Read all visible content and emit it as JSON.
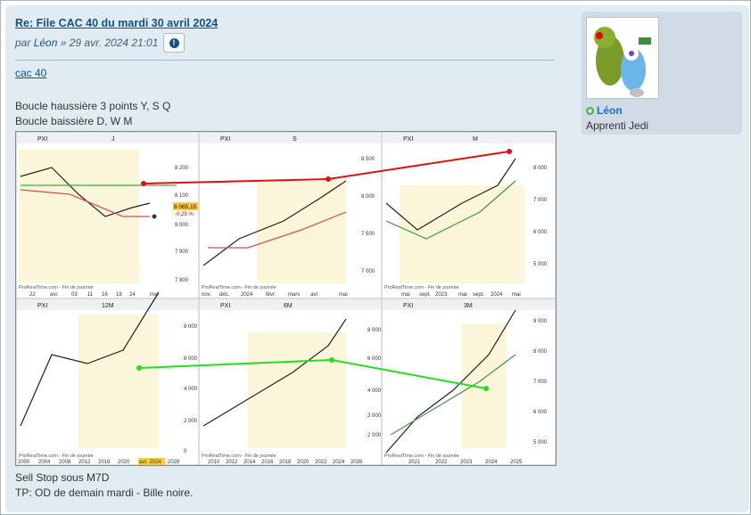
{
  "post": {
    "title": "Re: File CAC 40 du mardi 30 avril 2024",
    "by": "par",
    "author": "Léon",
    "date": "» 29 avr. 2024 21:01",
    "link_text": "cac 40",
    "lines": [
      "Boucle haussière 3 points Y, S Q",
      "Boucle baissière D, W M",
      "Sell Stop sous M7D",
      "TP: OD de demain mardi - Bille noire."
    ]
  },
  "profile": {
    "username": "Léon",
    "rank": "Apprenti Jedi"
  },
  "chart_image": {
    "source": "ProRealTime.com - Fin de journée",
    "symbol": "PXI",
    "top_timeframes": [
      "J",
      "S",
      "M"
    ],
    "bottom_timeframes": [
      "12M",
      "6M",
      "3M"
    ],
    "price_tag": "8 065,15",
    "price_change": "-0,29 %",
    "panels": [
      {
        "name": "daily",
        "y_ticks": [
          "8 200",
          "8 100",
          "8 000",
          "7 900",
          "7 800"
        ],
        "x_ticks": [
          "22",
          "avr.",
          "03",
          "11",
          "16",
          "18",
          "24",
          "mai"
        ]
      },
      {
        "name": "weekly",
        "y_ticks": [
          "8 500",
          "8 000",
          "7 500",
          "7 000"
        ],
        "x_ticks": [
          "nov.",
          "déc.",
          "2024",
          "févr.",
          "mars",
          "avr.",
          "mai"
        ]
      },
      {
        "name": "monthly",
        "y_ticks": [
          "8 000",
          "7 000",
          "6 000",
          "5 000"
        ],
        "x_ticks": [
          "mai",
          "sept.",
          "2023",
          "mai",
          "sept.",
          "2024",
          "mai"
        ]
      },
      {
        "name": "yearly",
        "y_ticks": [
          "8 000",
          "6 000",
          "4 000",
          "2 000",
          "0"
        ],
        "x_ticks": [
          "2000",
          "2004",
          "2008",
          "2012",
          "2016",
          "2020",
          "avr. 2024",
          "2028"
        ]
      },
      {
        "name": "semester",
        "y_ticks": [
          "8 000",
          "6 000",
          "4 000",
          "3 000",
          "2 000"
        ],
        "x_ticks": [
          "2010",
          "2012",
          "2014",
          "2016",
          "2018",
          "2020",
          "2022",
          "2024",
          "2026"
        ]
      },
      {
        "name": "quarter",
        "y_ticks": [
          "9 000",
          "8 000",
          "7 000",
          "6 000",
          "5 000"
        ],
        "x_ticks": [
          "2021",
          "2022",
          "2023",
          "2024",
          "2025"
        ]
      }
    ]
  }
}
